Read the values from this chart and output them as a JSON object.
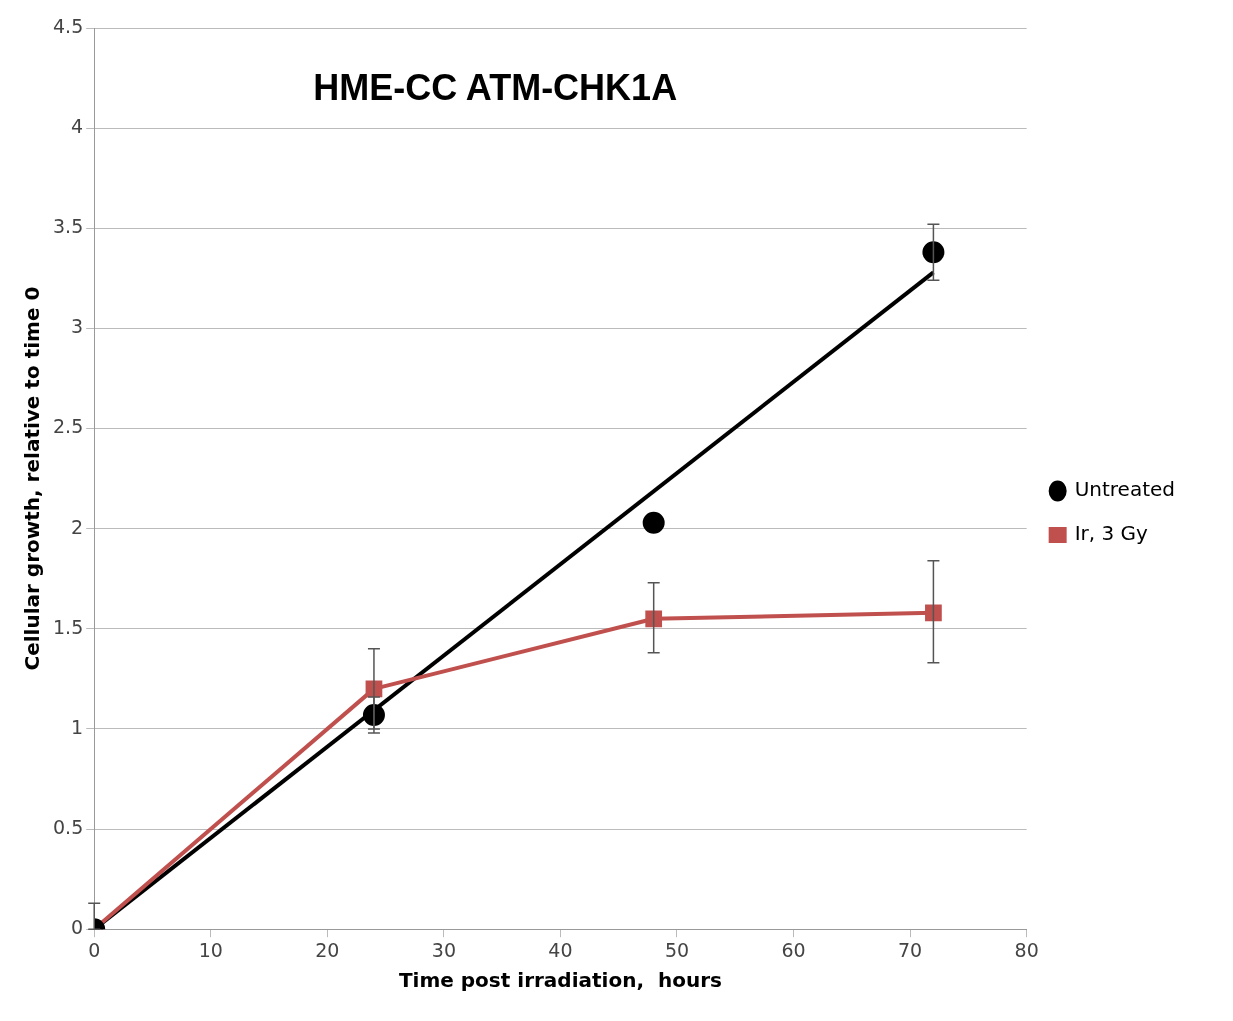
{
  "chart_data": {
    "type": "scatter",
    "title": "HME-CC ATM-CHK1A",
    "xlabel": "Time post irradiation,  hours",
    "ylabel": "Cellular growth, relative to time 0",
    "x": [
      0,
      24,
      48,
      72
    ],
    "series": [
      {
        "name": "Untreated",
        "color": "#000000",
        "type": "scatter",
        "marker": "circle",
        "values": [
          0,
          1.07,
          2.03,
          3.38
        ],
        "errors": [
          null,
          0.09,
          null,
          0.14
        ]
      },
      {
        "name": "Ir, 3 Gy",
        "color": "#c0504d",
        "type": "line",
        "marker": "square",
        "values": [
          0,
          1.2,
          1.55,
          1.58
        ],
        "errors": [
          [
            0,
            0.13
          ],
          0.2,
          [
            1.38,
            1.73
          ],
          [
            1.33,
            1.84
          ]
        ]
      },
      {
        "color": "#000000",
        "type": "line",
        "marker": "none",
        "x": [
          0,
          72
        ],
        "values": [
          0,
          3.28
        ]
      }
    ],
    "xlim": [
      0,
      80
    ],
    "xticks": [
      0,
      10,
      20,
      30,
      40,
      50,
      60,
      70,
      80
    ],
    "ylim": [
      0,
      4.5
    ],
    "yticks": [
      0,
      0.5,
      1,
      1.5,
      2,
      2.5,
      3,
      3.5,
      4,
      4.5
    ],
    "grid": "y",
    "legend": "right"
  }
}
